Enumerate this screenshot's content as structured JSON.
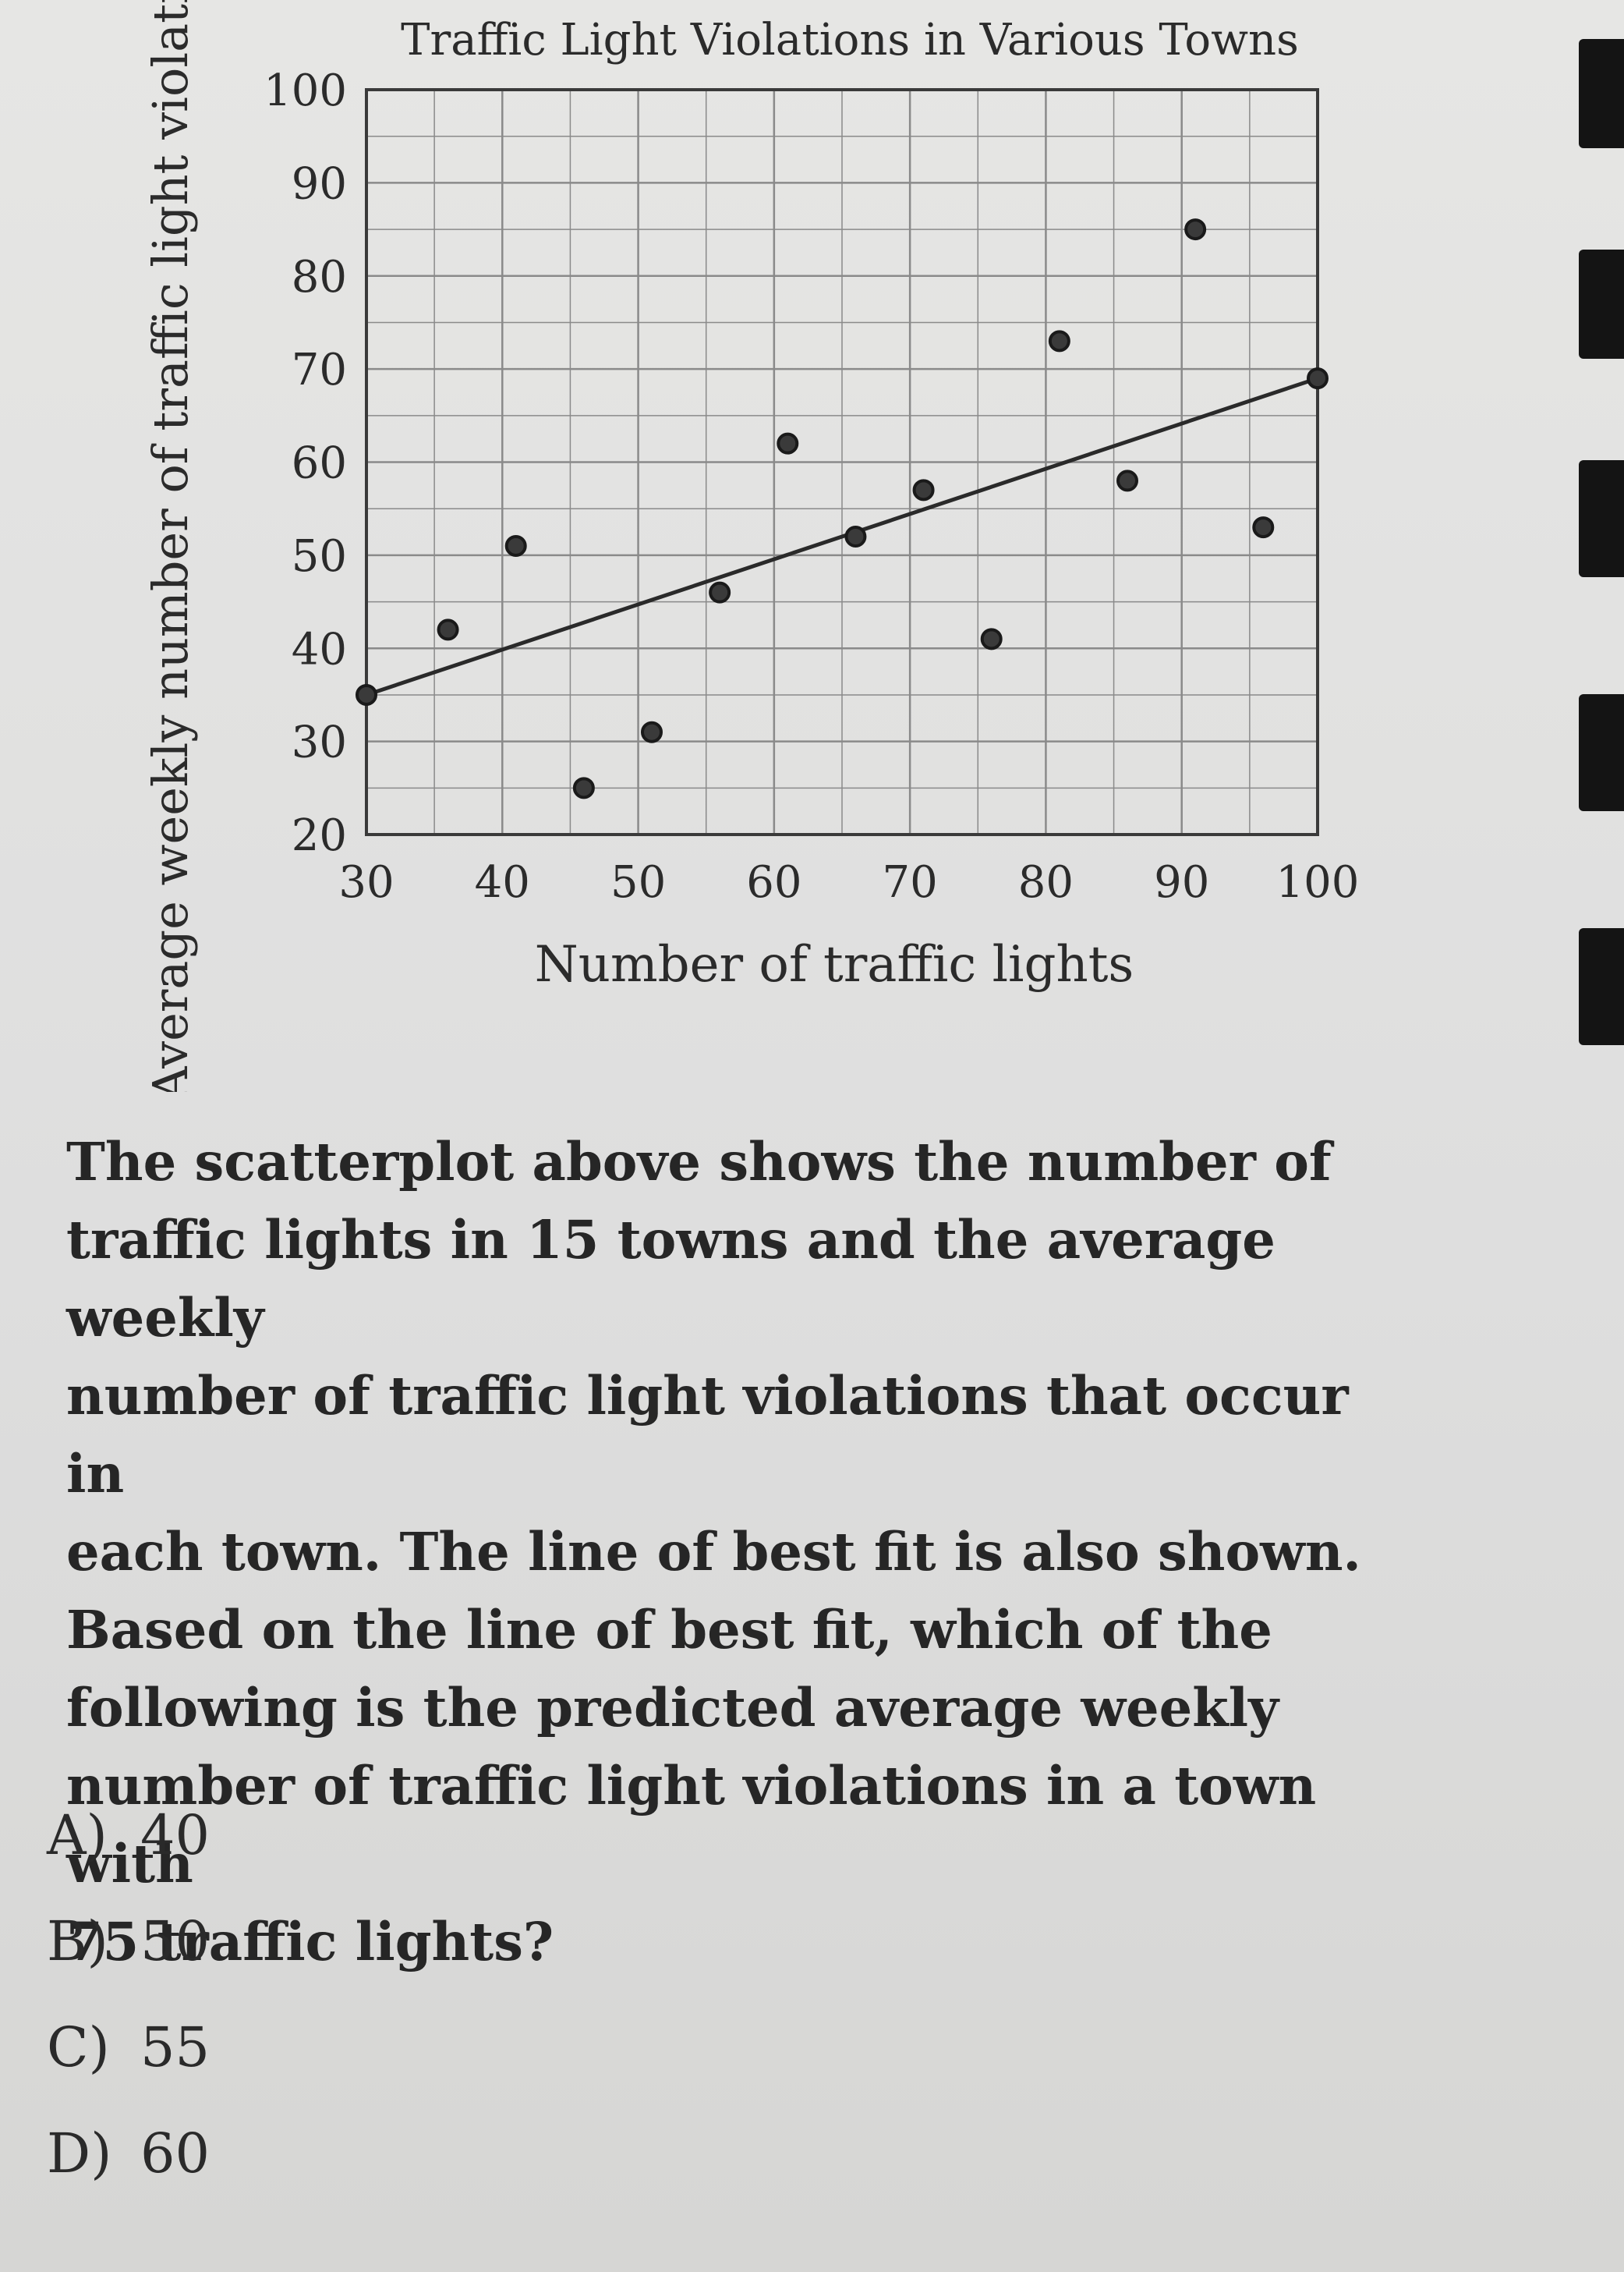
{
  "chart_data": {
    "type": "scatter",
    "title": "Traffic Light Violations in Various Towns",
    "xlabel": "Number of traffic lights",
    "ylabel": "Average weekly number of traffic light violatio",
    "xlim": [
      30,
      100
    ],
    "ylim": [
      20,
      100
    ],
    "x_ticks": [
      30,
      40,
      50,
      60,
      70,
      80,
      90,
      100
    ],
    "y_ticks": [
      20,
      30,
      40,
      50,
      60,
      70,
      80,
      90,
      100
    ],
    "grid": true,
    "points": [
      {
        "x": 30,
        "y": 35
      },
      {
        "x": 36,
        "y": 42
      },
      {
        "x": 41,
        "y": 51
      },
      {
        "x": 46,
        "y": 25
      },
      {
        "x": 51,
        "y": 31
      },
      {
        "x": 56,
        "y": 46
      },
      {
        "x": 61,
        "y": 62
      },
      {
        "x": 66,
        "y": 52
      },
      {
        "x": 71,
        "y": 57
      },
      {
        "x": 76,
        "y": 41
      },
      {
        "x": 81,
        "y": 73
      },
      {
        "x": 86,
        "y": 58
      },
      {
        "x": 91,
        "y": 85
      },
      {
        "x": 96,
        "y": 53
      },
      {
        "x": 100,
        "y": 69
      }
    ],
    "best_fit_line": {
      "from": {
        "x": 30,
        "y": 35
      },
      "to": {
        "x": 100,
        "y": 69
      }
    }
  },
  "question": {
    "lines": [
      "The scatterplot above shows the number of",
      "traffic lights in 15 towns and the average weekly",
      "number of traffic light violations that occur in",
      "each town. The line of best fit is also shown.",
      "Based on the line of best fit, which of the",
      "following is the predicted average weekly",
      "number of traffic light violations in a town with",
      "75 traffic lights?"
    ]
  },
  "choices": [
    {
      "letter": "A)",
      "value": "40"
    },
    {
      "letter": "B)",
      "value": "50"
    },
    {
      "letter": "C)",
      "value": "55"
    },
    {
      "letter": "D)",
      "value": "60"
    }
  ],
  "colors": {
    "ink": "#262626",
    "point_fill": "#3a3a3a",
    "grid": "#8a8a8a",
    "paper": "#dedede"
  }
}
